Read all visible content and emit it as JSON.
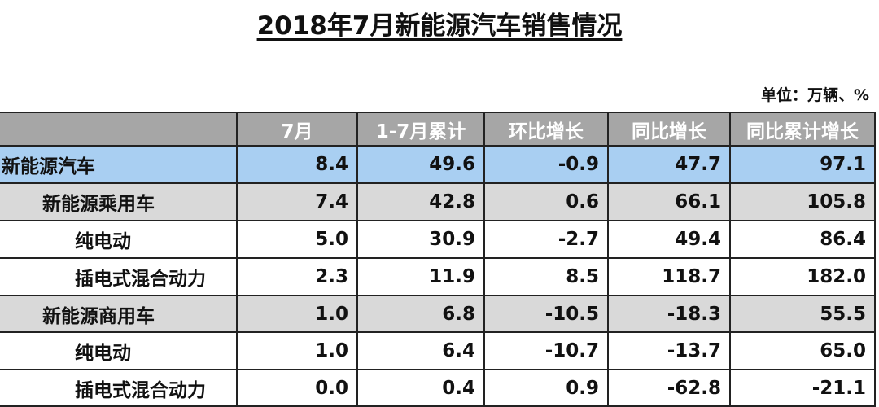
{
  "header": {
    "title": "2018年7月新能源汽车销售情况",
    "unit": "单位：万辆、%"
  },
  "table": {
    "columns": [
      "",
      "7月",
      "1-7月累计",
      "环比增长",
      "同比增长",
      "同比累计增长"
    ],
    "rows": [
      [
        "新能源汽车",
        "8.4",
        "49.6",
        "-0.9",
        "47.7",
        "97.1"
      ],
      [
        "新能源乘用车",
        "7.4",
        "42.8",
        "0.6",
        "66.1",
        "105.8"
      ],
      [
        "纯电动",
        "5.0",
        "30.9",
        "-2.7",
        "49.4",
        "86.4"
      ],
      [
        "插电式混合动力",
        "2.3",
        "11.9",
        "8.5",
        "118.7",
        "182.0"
      ],
      [
        "新能源商用车",
        "1.0",
        "6.8",
        "-10.5",
        "-18.3",
        "55.5"
      ],
      [
        "纯电动",
        "1.0",
        "6.4",
        "-10.7",
        "-13.7",
        "65.0"
      ],
      [
        "插电式混合动力",
        "0.0",
        "0.4",
        "0.9",
        "-62.8",
        "-21.1"
      ]
    ]
  }
}
